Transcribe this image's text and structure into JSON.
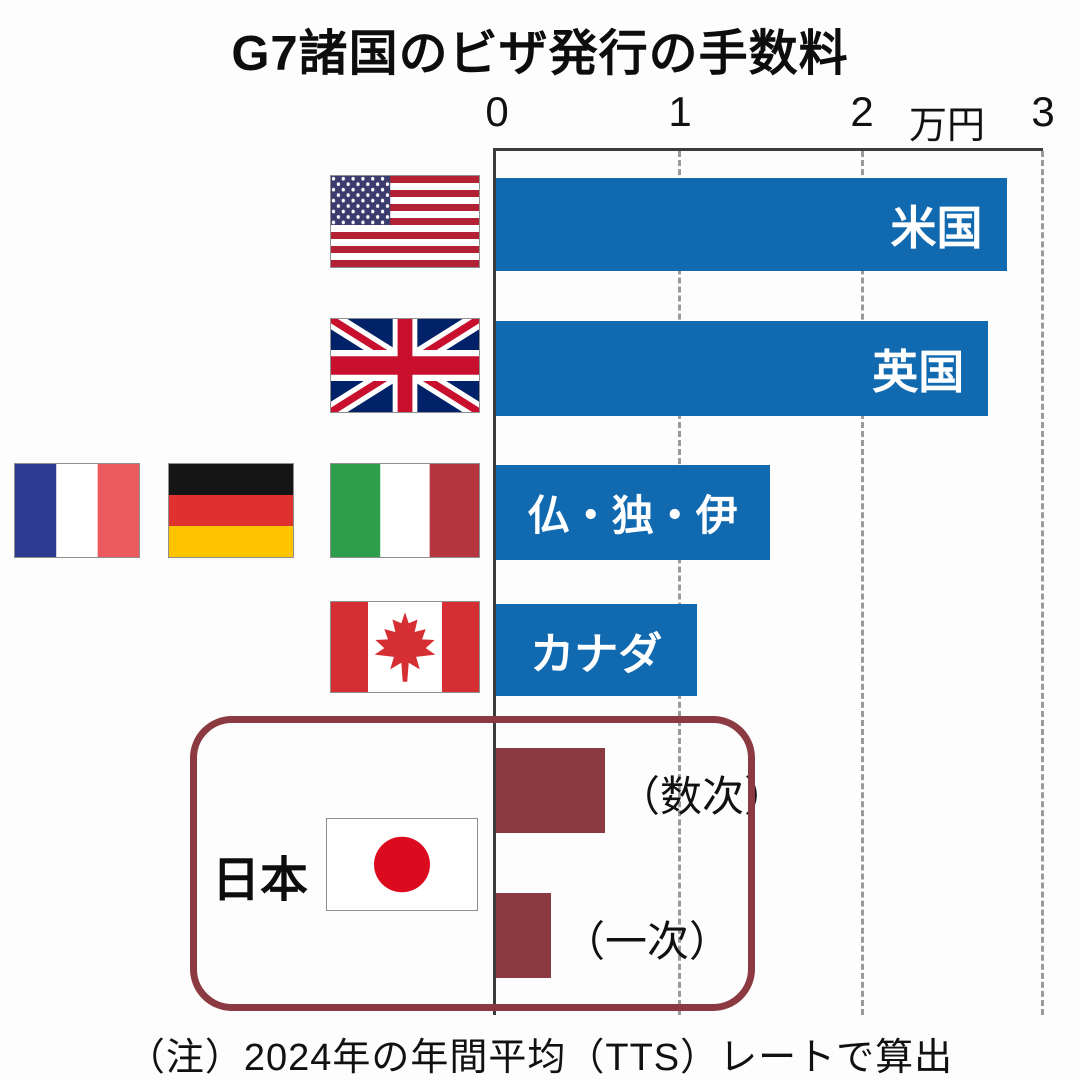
{
  "title": "G7諸国のビザ発行の手数料",
  "note": "（注）2024年の年間平均（TTS）レートで算出",
  "chart_data": {
    "type": "bar",
    "orientation": "horizontal",
    "title": "G7諸国のビザ発行の手数料",
    "unit_label": "万円",
    "xlim": [
      0,
      3
    ],
    "xticks": [
      0,
      1,
      2,
      3
    ],
    "grid": "dashed vertical gridlines at 1, 2, 3",
    "legend_position": "none",
    "categories": [
      "米国",
      "英国",
      "仏・独・伊",
      "カナダ",
      "日本（数次）",
      "日本（一次）"
    ],
    "values": [
      2.8,
      2.7,
      1.5,
      1.1,
      0.6,
      0.3
    ],
    "bar_colors": [
      "#1169b0",
      "#1169b0",
      "#1169b0",
      "#1169b0",
      "#8a3a40",
      "#8a3a40"
    ],
    "note": "（注）2024年の年間平均（TTS）レートで算出"
  },
  "labels": {
    "usa": "米国",
    "uk": "英国",
    "france_germany_italy": "仏・独・伊",
    "canada": "カナダ",
    "japan": "日本",
    "japan_multiple": "（数次）",
    "japan_single": "（一次）"
  },
  "colors": {
    "g7_bar_blue": "#1169b0",
    "japan_bar_red": "#8a3a40",
    "japan_box_border": "#8a3a40",
    "axis_line": "#3c3c3c",
    "gridline": "#9a9a9a"
  },
  "icons": {
    "flags": [
      "us-flag",
      "uk-flag",
      "france-flag",
      "germany-flag",
      "italy-flag",
      "canada-flag",
      "japan-flag"
    ]
  }
}
